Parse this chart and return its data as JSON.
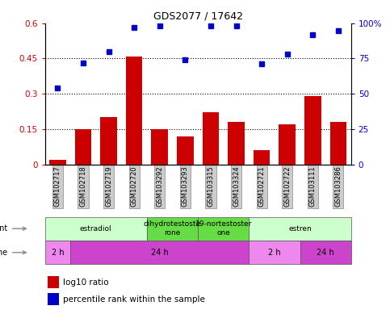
{
  "title": "GDS2077 / 17642",
  "samples": [
    "GSM102717",
    "GSM102718",
    "GSM102719",
    "GSM102720",
    "GSM103292",
    "GSM103293",
    "GSM103315",
    "GSM103324",
    "GSM102721",
    "GSM102722",
    "GSM103111",
    "GSM103286"
  ],
  "log10_ratio": [
    0.02,
    0.15,
    0.2,
    0.46,
    0.15,
    0.12,
    0.22,
    0.18,
    0.06,
    0.17,
    0.29,
    0.18
  ],
  "percentile_rank": [
    54,
    72,
    80,
    97,
    98,
    74,
    98,
    98,
    71,
    78,
    92,
    95
  ],
  "bar_color": "#cc0000",
  "dot_color": "#0000cc",
  "ylim_left": [
    0,
    0.6
  ],
  "ylim_right": [
    0,
    100
  ],
  "yticks_left": [
    0,
    0.15,
    0.3,
    0.45,
    0.6
  ],
  "yticks_right": [
    0,
    25,
    50,
    75,
    100
  ],
  "ytick_labels_left": [
    "0",
    "0.15",
    "0.3",
    "0.45",
    "0.6"
  ],
  "ytick_labels_right": [
    "0",
    "25",
    "50",
    "75",
    "100%"
  ],
  "hlines": [
    0.15,
    0.3,
    0.45
  ],
  "agent_groups": [
    {
      "label": "estradiol",
      "start": 0,
      "end": 4,
      "color": "#ccffcc"
    },
    {
      "label": "dihydrotestoste\nrone",
      "start": 4,
      "end": 6,
      "color": "#66dd44"
    },
    {
      "label": "19-nortestoster\none",
      "start": 6,
      "end": 8,
      "color": "#66dd44"
    },
    {
      "label": "estren",
      "start": 8,
      "end": 12,
      "color": "#ccffcc"
    }
  ],
  "time_groups": [
    {
      "label": "2 h",
      "start": 0,
      "end": 1,
      "color": "#ee88ee"
    },
    {
      "label": "24 h",
      "start": 1,
      "end": 8,
      "color": "#cc44cc"
    },
    {
      "label": "2 h",
      "start": 8,
      "end": 10,
      "color": "#ee88ee"
    },
    {
      "label": "24 h",
      "start": 10,
      "end": 12,
      "color": "#cc44cc"
    }
  ],
  "legend_bar_label": "log10 ratio",
  "legend_dot_label": "percentile rank within the sample",
  "bar_color_hex": "#cc0000",
  "dot_color_hex": "#0000cc",
  "right_axis_color": "#0000cc",
  "sample_box_color": "#cccccc",
  "figwidth": 4.83,
  "figheight": 3.84,
  "dpi": 100
}
